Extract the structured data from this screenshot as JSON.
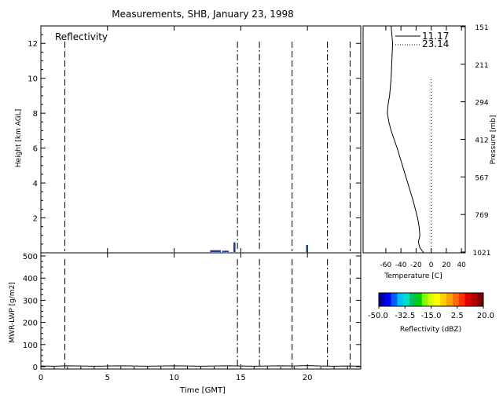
{
  "title": "Measurements, SHB, January 23, 1998",
  "colors": {
    "echo": "#1a3c9c",
    "axis": "#000000"
  },
  "chart_data": [
    {
      "type": "heatmap",
      "panel": "reflectivity",
      "label": "Reflectivity",
      "ylabel": "Height [km AGL]",
      "xlim": [
        0,
        24
      ],
      "ylim": [
        0,
        13
      ],
      "yticks": [
        0,
        2,
        4,
        6,
        8,
        10,
        12
      ],
      "ytick_labels": [
        "",
        "2",
        "4",
        "6",
        "8",
        "10",
        "12"
      ],
      "sonde_times": [
        1.8,
        14.75,
        16.4,
        18.85,
        21.5,
        23.2
      ],
      "sonde_styles": [
        "dash",
        "dashdot",
        "dashdot",
        "dash",
        "dashdot",
        "dash"
      ],
      "echoes": [
        {
          "t0": 12.7,
          "t1": 13.5,
          "h0": 0.0,
          "h1": 0.15
        },
        {
          "t0": 13.6,
          "t1": 14.1,
          "h0": 0.0,
          "h1": 0.12
        },
        {
          "t0": 14.45,
          "t1": 14.6,
          "h0": 0.0,
          "h1": 0.6
        },
        {
          "t0": 19.9,
          "t1": 20.05,
          "h0": 0.0,
          "h1": 0.45
        }
      ]
    },
    {
      "type": "line",
      "panel": "lwp",
      "ylabel": "MWR-LWP [g/m2]",
      "xlabel": "Time [GMT]",
      "xlim": [
        0,
        24
      ],
      "ylim": [
        0,
        500
      ],
      "xticks": [
        0,
        5,
        10,
        15,
        20
      ],
      "xtick_labels": [
        "0",
        "5",
        "10",
        "15",
        "20"
      ],
      "yticks": [
        0,
        100,
        200,
        300,
        400,
        500
      ],
      "ytick_labels": [
        "0",
        "100",
        "200",
        "300",
        "400",
        "500"
      ],
      "x": [
        0,
        1,
        2,
        3,
        4,
        5,
        6,
        7,
        8,
        9,
        10,
        11,
        12,
        13,
        14,
        15,
        16,
        17,
        18,
        19,
        20,
        21,
        22,
        23,
        24
      ],
      "values": [
        3,
        2,
        4,
        3,
        2,
        3,
        4,
        3,
        2,
        3,
        4,
        3,
        2,
        3,
        4,
        3,
        2,
        3,
        4,
        3,
        5,
        3,
        2,
        3,
        2
      ]
    },
    {
      "type": "line",
      "panel": "temperature-profile",
      "xlabel": "Temperature [C]",
      "ylabel": "Pressure [mb]",
      "xlim": [
        -90,
        45
      ],
      "xticks": [
        -60,
        -40,
        -20,
        0,
        20,
        40
      ],
      "xtick_labels": [
        "-60",
        "-40",
        "-20",
        "0",
        "20",
        "40"
      ],
      "pressure_tick_labels": [
        "151",
        "211",
        "294",
        "412",
        "567",
        "769",
        "1021"
      ],
      "series": [
        {
          "name": "11.17",
          "style": "solid",
          "height_km": [
            0,
            0.3,
            0.6,
            1.0,
            1.5,
            2.0,
            3.0,
            4.0,
            5.0,
            6.0,
            7.0,
            7.5,
            8.0,
            8.5,
            9.0,
            10.0,
            11.0,
            12.0,
            12.5,
            13.0
          ],
          "temp_c": [
            -10,
            -15,
            -17,
            -15,
            -16,
            -18,
            -24,
            -31,
            -38,
            -45,
            -53,
            -56,
            -58,
            -57,
            -55,
            -53,
            -52,
            -51,
            -52,
            -53
          ]
        },
        {
          "name": "23.14",
          "style": "dotted",
          "height_km": [
            0,
            10
          ],
          "temp_c": [
            0,
            0
          ]
        }
      ]
    },
    {
      "type": "heatmap",
      "panel": "colorbar",
      "label": "Reflectivity (dBZ)",
      "tick_labels": [
        "-50.0",
        "-32.5",
        "-15.0",
        "2.5",
        "20.0"
      ],
      "tick_values": [
        -50,
        -32.5,
        -15,
        2.5,
        20
      ],
      "range": [
        -50,
        20
      ],
      "colors": [
        "#0000a0",
        "#0000ff",
        "#0060ff",
        "#00c0ff",
        "#00e0c0",
        "#00c060",
        "#00d000",
        "#80ff00",
        "#e0ff00",
        "#ffff00",
        "#ffd000",
        "#ffa000",
        "#ff7000",
        "#ff3000",
        "#e00000",
        "#b00000",
        "#800000"
      ]
    }
  ]
}
